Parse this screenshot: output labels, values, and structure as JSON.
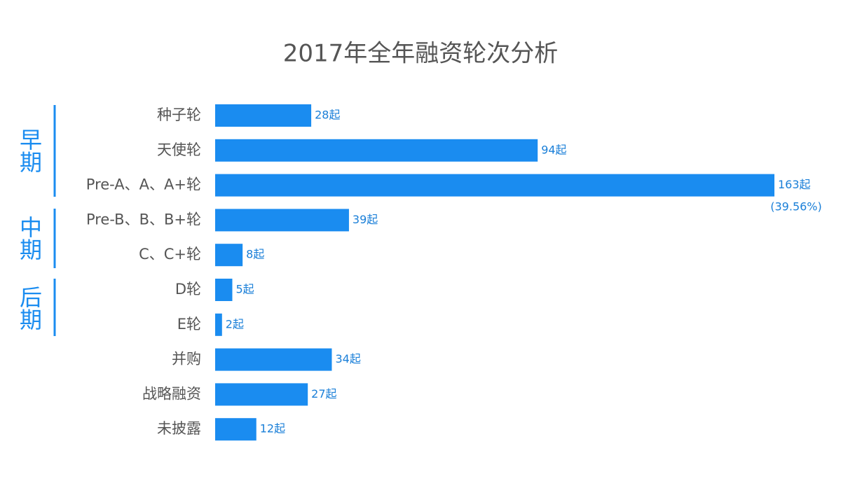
{
  "chart_data": {
    "type": "bar",
    "orientation": "horizontal",
    "title": "2017年全年融资轮次分析",
    "categories": [
      "种子轮",
      "天使轮",
      "Pre-A、A、A+轮",
      "Pre-B、B、B+轮",
      "C、C+轮",
      "D轮",
      "E轮",
      "并购",
      "战略融资",
      "未披露"
    ],
    "values": [
      28,
      94,
      163,
      39,
      8,
      5,
      2,
      34,
      27,
      12
    ],
    "value_labels": [
      "28起",
      "94起",
      "163起",
      "39起",
      "8起",
      "5起",
      "2起",
      "34起",
      "27起",
      "12起"
    ],
    "color": "#1a8cf0",
    "annotation": "(39.56%)",
    "groups": [
      "早期",
      "中期",
      "后期"
    ]
  }
}
